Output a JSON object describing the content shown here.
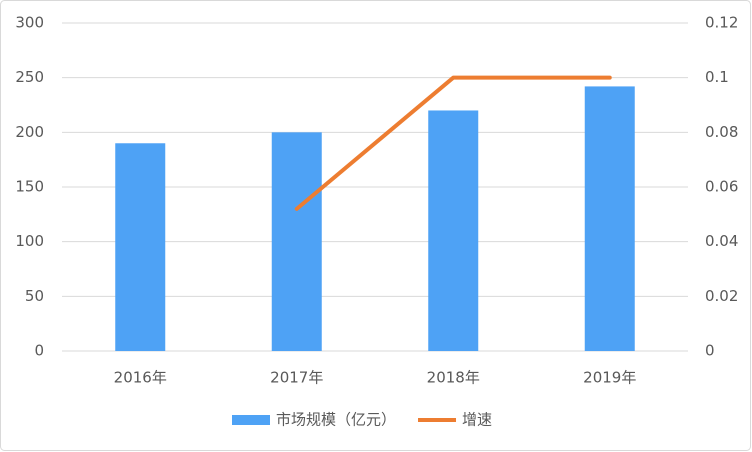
{
  "chart_data": {
    "type": "bar_line",
    "categories": [
      "2016年",
      "2017年",
      "2018年",
      "2019年"
    ],
    "series": [
      {
        "name": "市场规模（亿元）",
        "type": "bar",
        "color": "#4ea2f5",
        "values": [
          190,
          200,
          220,
          242
        ]
      },
      {
        "name": "增速",
        "type": "line",
        "axis": "y2",
        "color": "#ed7d31",
        "values": [
          null,
          0.052,
          0.1,
          0.1
        ]
      }
    ],
    "ylim": [
      0,
      300
    ],
    "yticks": [
      0,
      50,
      100,
      150,
      200,
      250,
      300
    ],
    "y2lim": [
      0,
      0.12
    ],
    "y2ticks": [
      0,
      0.02,
      0.04,
      0.06,
      0.08,
      0.1,
      0.12
    ],
    "grid": true,
    "legend": "bottom"
  }
}
